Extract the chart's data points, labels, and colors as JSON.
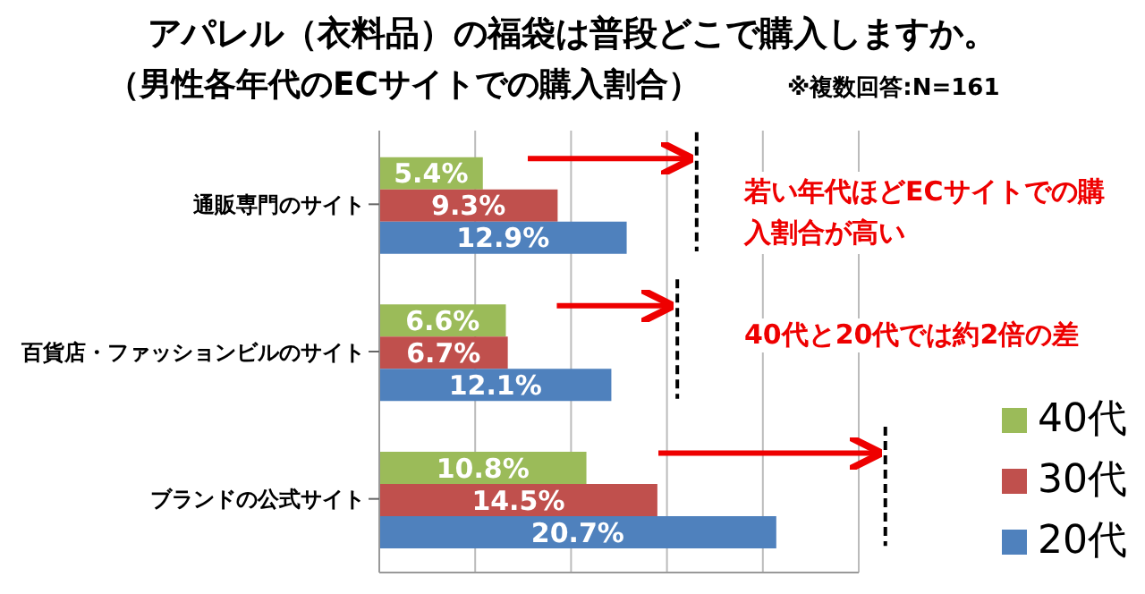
{
  "chart_data": {
    "type": "bar",
    "orientation": "horizontal",
    "title": "アパレル（衣料品）の福袋は普段どこで購入しますか。",
    "subtitle": "（男性各年代のECサイトでの購入割合）",
    "annotations": [
      "※複数回答:N=161",
      "若い年代ほどECサイトでの購入割合が高い",
      "40代と20代では約2倍の差"
    ],
    "categories": [
      "通販専門のサイト",
      "百貨店・ファッションビルのサイト",
      "ブランドの公式サイト"
    ],
    "series": [
      {
        "name": "40代",
        "color": "#9bbb59",
        "values": [
          5.4,
          6.6,
          10.8
        ],
        "value_labels": [
          "5.4%",
          "6.6%",
          "10.8%"
        ]
      },
      {
        "name": "30代",
        "color": "#c0504d",
        "values": [
          9.3,
          6.7,
          14.5
        ],
        "value_labels": [
          "9.3%",
          "6.7%",
          "14.5%"
        ]
      },
      {
        "name": "20代",
        "color": "#4f81bd",
        "values": [
          12.9,
          12.1,
          20.7
        ],
        "value_labels": [
          "12.9%",
          "12.1%",
          "20.7%"
        ]
      }
    ],
    "xlim": [
      0,
      25
    ],
    "tick_labels": "y",
    "grid": "x",
    "legend": "bottom right"
  }
}
